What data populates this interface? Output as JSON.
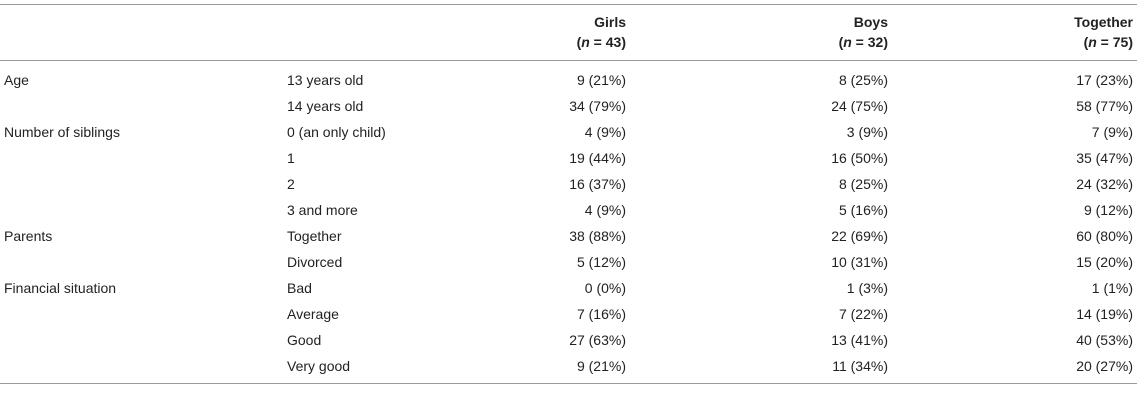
{
  "columns": [
    {
      "label": "",
      "n": ""
    },
    {
      "label": "",
      "n": ""
    },
    {
      "label": "Girls",
      "n_var": "n",
      "n_rest": " = 43"
    },
    {
      "label": "Boys",
      "n_var": "n",
      "n_rest": " = 32"
    },
    {
      "label": "Together",
      "n_var": "n",
      "n_rest": " = 75"
    }
  ],
  "rows": [
    {
      "category": "Age",
      "sub": "13 years old",
      "girls": "9 (21%)",
      "boys": "8 (25%)",
      "together": "17 (23%)"
    },
    {
      "category": "",
      "sub": "14 years old",
      "girls": "34 (79%)",
      "boys": "24 (75%)",
      "together": "58 (77%)"
    },
    {
      "category": "Number of siblings",
      "sub": "0 (an only child)",
      "girls": "4 (9%)",
      "boys": "3 (9%)",
      "together": "7 (9%)"
    },
    {
      "category": "",
      "sub": "1",
      "girls": "19 (44%)",
      "boys": "16 (50%)",
      "together": "35 (47%)"
    },
    {
      "category": "",
      "sub": "2",
      "girls": "16 (37%)",
      "boys": "8 (25%)",
      "together": "24 (32%)"
    },
    {
      "category": "",
      "sub": "3 and more",
      "girls": "4 (9%)",
      "boys": "5 (16%)",
      "together": "9 (12%)"
    },
    {
      "category": "Parents",
      "sub": "Together",
      "girls": "38 (88%)",
      "boys": "22 (69%)",
      "together": "60 (80%)"
    },
    {
      "category": "",
      "sub": "Divorced",
      "girls": "5 (12%)",
      "boys": "10 (31%)",
      "together": "15 (20%)"
    },
    {
      "category": "Financial situation",
      "sub": "Bad",
      "girls": "0 (0%)",
      "boys": "1 (3%)",
      "together": "1 (1%)"
    },
    {
      "category": "",
      "sub": "Average",
      "girls": "7 (16%)",
      "boys": "7 (22%)",
      "together": "14 (19%)"
    },
    {
      "category": "",
      "sub": "Good",
      "girls": "27 (63%)",
      "boys": "13 (41%)",
      "together": "40 (53%)"
    },
    {
      "category": "",
      "sub": "Very good",
      "girls": "9 (21%)",
      "boys": "11 (34%)",
      "together": "20 (27%)"
    }
  ]
}
